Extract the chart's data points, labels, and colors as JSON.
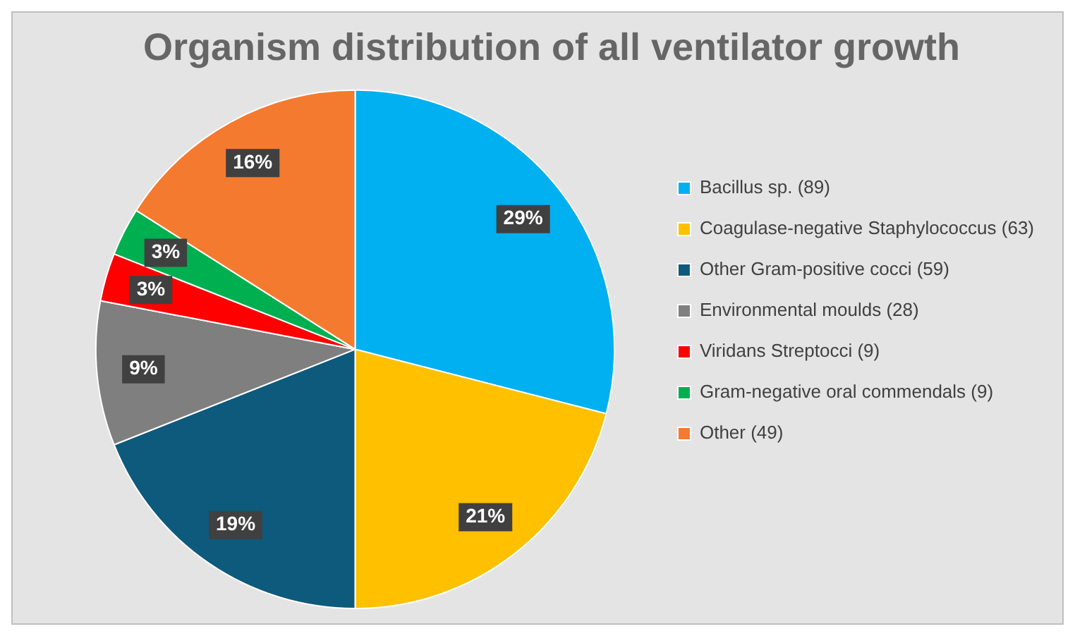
{
  "chart_data": {
    "type": "pie",
    "title": "Organism distribution of all ventilator growth",
    "categories": [
      "Bacillus sp. (89)",
      "Coagulase-negative Staphylococcus (63)",
      "Other Gram-positive cocci (59)",
      "Environmental moulds (28)",
      "Viridans Streptocci (9)",
      "Gram-negative oral commendals (9)",
      "Other (49)"
    ],
    "values": [
      29,
      21,
      19,
      9,
      3,
      3,
      16
    ],
    "colors": [
      "#00b0f0",
      "#ffc000",
      "#0e5a7c",
      "#7f7f7f",
      "#ff0000",
      "#00b050",
      "#f47a30"
    ],
    "value_labels": [
      "29%",
      "21%",
      "19%",
      "9%",
      "3%",
      "3%",
      "16%"
    ],
    "legend": "right"
  }
}
